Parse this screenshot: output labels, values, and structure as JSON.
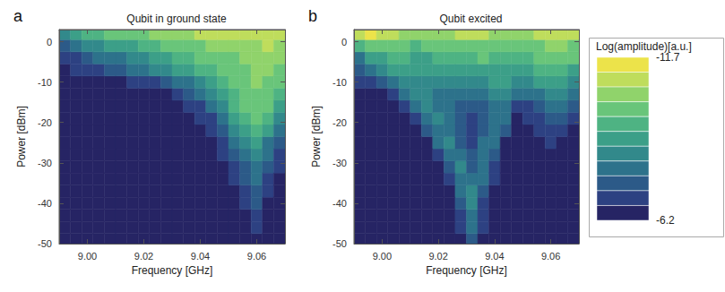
{
  "chart_data": [
    {
      "type": "heatmap",
      "panel_label": "a",
      "title": "Qubit in ground state",
      "x_label": "Frequency [GHz]",
      "y_label": "Power [dBm]",
      "xlim": [
        8.99,
        9.07
      ],
      "xticks": [
        {
          "value": 9,
          "label": "9.00"
        },
        9.02,
        9.04,
        9.06
      ],
      "ylim": [
        -50,
        3
      ],
      "yticks": [
        -50,
        -40,
        -30,
        -20,
        -10,
        0
      ],
      "grid": false,
      "x": [
        8.992,
        8.996,
        9.0,
        9.004,
        9.008,
        9.012,
        9.016,
        9.02,
        9.024,
        9.028,
        9.032,
        9.036,
        9.04,
        9.044,
        9.048,
        9.052,
        9.056,
        9.06,
        9.064,
        9.068
      ],
      "y": [
        -49,
        -46,
        -43,
        -40,
        -37,
        -34,
        -31,
        -28,
        -25,
        -22,
        -19,
        -16,
        -13,
        -10,
        -7,
        -4,
        -1,
        2
      ],
      "z": [
        [
          -6.3,
          -6.3,
          -6.3,
          -6.3,
          -6.3,
          -6.3,
          -6.3,
          -6.3,
          -6.3,
          -6.3,
          -6.3,
          -6.3,
          -6.3,
          -6.3,
          -6.3,
          -6.3,
          -6.3,
          -6.5,
          -6.3,
          -6.3
        ],
        [
          -6.3,
          -6.3,
          -6.3,
          -6.3,
          -6.3,
          -6.3,
          -6.3,
          -6.3,
          -6.3,
          -6.3,
          -6.3,
          -6.3,
          -6.3,
          -6.3,
          -6.3,
          -6.3,
          -6.3,
          -6.8,
          -6.3,
          -6.3
        ],
        [
          -6.3,
          -6.3,
          -6.3,
          -6.3,
          -6.3,
          -6.3,
          -6.3,
          -6.3,
          -6.3,
          -6.3,
          -6.3,
          -6.3,
          -6.3,
          -6.3,
          -6.3,
          -6.3,
          -6.6,
          -7.0,
          -6.3,
          -6.3
        ],
        [
          -6.3,
          -6.3,
          -6.3,
          -6.3,
          -6.3,
          -6.3,
          -6.3,
          -6.3,
          -6.3,
          -6.3,
          -6.3,
          -6.3,
          -6.3,
          -6.3,
          -6.3,
          -6.3,
          -6.8,
          -7.3,
          -6.6,
          -6.3
        ],
        [
          -6.3,
          -6.3,
          -6.3,
          -6.3,
          -6.3,
          -6.3,
          -6.3,
          -6.3,
          -6.3,
          -6.3,
          -6.3,
          -6.3,
          -6.3,
          -6.3,
          -6.3,
          -6.3,
          -7.0,
          -7.4,
          -6.8,
          -6.3
        ],
        [
          -6.3,
          -6.3,
          -6.3,
          -6.3,
          -6.3,
          -6.3,
          -6.3,
          -6.3,
          -6.3,
          -6.3,
          -6.3,
          -6.3,
          -6.3,
          -6.3,
          -6.3,
          -6.8,
          -7.4,
          -7.8,
          -7.0,
          -6.3
        ],
        [
          -6.3,
          -6.3,
          -6.3,
          -6.3,
          -6.3,
          -6.3,
          -6.3,
          -6.3,
          -6.3,
          -6.3,
          -6.3,
          -6.3,
          -6.3,
          -6.3,
          -6.3,
          -7.0,
          -7.6,
          -8.0,
          -7.4,
          -6.8
        ],
        [
          -6.3,
          -6.3,
          -6.3,
          -6.3,
          -6.3,
          -6.3,
          -6.3,
          -6.3,
          -6.3,
          -6.3,
          -6.3,
          -6.3,
          -6.3,
          -6.3,
          -6.8,
          -7.4,
          -8.0,
          -8.4,
          -7.8,
          -7.0
        ],
        [
          -6.3,
          -6.3,
          -6.3,
          -6.3,
          -6.3,
          -6.3,
          -6.3,
          -6.3,
          -6.3,
          -6.3,
          -6.3,
          -6.3,
          -6.3,
          -6.3,
          -7.0,
          -7.8,
          -8.6,
          -8.8,
          -8.2,
          -7.4
        ],
        [
          -6.3,
          -6.3,
          -6.3,
          -6.3,
          -6.3,
          -6.3,
          -6.3,
          -6.3,
          -6.3,
          -6.3,
          -6.3,
          -6.3,
          -6.3,
          -6.8,
          -7.6,
          -8.4,
          -9.2,
          -9.4,
          -8.8,
          -8.0
        ],
        [
          -6.3,
          -6.3,
          -6.3,
          -6.3,
          -6.3,
          -6.3,
          -6.3,
          -6.3,
          -6.3,
          -6.3,
          -6.3,
          -6.3,
          -6.8,
          -7.2,
          -8.2,
          -9.0,
          -9.6,
          -9.8,
          -9.4,
          -8.6
        ],
        [
          -6.3,
          -6.3,
          -6.3,
          -6.3,
          -6.3,
          -6.3,
          -6.3,
          -6.3,
          -6.3,
          -6.3,
          -6.3,
          -6.8,
          -7.2,
          -7.8,
          -8.6,
          -9.4,
          -9.8,
          -10.0,
          -9.8,
          -9.2
        ],
        [
          -6.3,
          -6.3,
          -6.3,
          -6.3,
          -6.3,
          -6.3,
          -6.3,
          -6.3,
          -6.3,
          -6.7,
          -7.0,
          -7.4,
          -7.8,
          -8.4,
          -9.0,
          -9.6,
          -10.0,
          -10.2,
          -10.0,
          -9.6
        ],
        [
          -6.3,
          -6.3,
          -6.3,
          -6.3,
          -6.3,
          -6.3,
          -6.8,
          -7.0,
          -7.2,
          -7.4,
          -7.8,
          -8.2,
          -8.6,
          -9.0,
          -9.4,
          -9.8,
          -10.2,
          -10.4,
          -10.2,
          -9.8
        ],
        [
          -6.6,
          -6.8,
          -7.0,
          -7.2,
          -7.4,
          -7.6,
          -7.8,
          -8.0,
          -8.4,
          -8.6,
          -9.0,
          -9.2,
          -9.4,
          -9.6,
          -9.8,
          -10.0,
          -10.2,
          -10.4,
          -10.4,
          -10.2
        ],
        [
          -7.0,
          -7.2,
          -7.6,
          -7.8,
          -8.0,
          -8.2,
          -8.4,
          -8.6,
          -8.8,
          -9.2,
          -9.4,
          -9.6,
          -9.8,
          -10.0,
          -10.2,
          -10.2,
          -10.4,
          -10.4,
          -10.6,
          -10.4
        ],
        [
          -7.6,
          -8.0,
          -8.4,
          -8.6,
          -8.8,
          -9.0,
          -9.2,
          -9.4,
          -9.6,
          -9.8,
          -10.0,
          -10.2,
          -10.2,
          -10.4,
          -10.4,
          -10.6,
          -10.6,
          -10.6,
          -10.8,
          -10.6
        ],
        [
          -8.6,
          -9.0,
          -9.4,
          -9.6,
          -9.8,
          -10.0,
          -10.2,
          -10.2,
          -10.4,
          -10.6,
          -10.6,
          -10.6,
          -10.8,
          -10.8,
          -10.8,
          -10.8,
          -10.8,
          -11.0,
          -11.0,
          -10.8
        ]
      ]
    },
    {
      "type": "heatmap",
      "panel_label": "b",
      "title": "Qubit excited",
      "x_label": "Frequency [GHz]",
      "y_label": "Power [dBm]",
      "xlim": [
        8.99,
        9.07
      ],
      "xticks": [
        {
          "value": 9,
          "label": "9.00"
        },
        9.02,
        9.04,
        9.06
      ],
      "ylim": [
        -50,
        3
      ],
      "yticks": [
        -50,
        -40,
        -30,
        -20,
        -10,
        0
      ],
      "grid": false,
      "x": [
        8.992,
        8.996,
        9.0,
        9.004,
        9.008,
        9.012,
        9.016,
        9.02,
        9.024,
        9.028,
        9.032,
        9.036,
        9.04,
        9.044,
        9.048,
        9.052,
        9.056,
        9.06,
        9.064,
        9.068
      ],
      "y": [
        -49,
        -46,
        -43,
        -40,
        -37,
        -34,
        -31,
        -28,
        -25,
        -22,
        -19,
        -16,
        -13,
        -10,
        -7,
        -4,
        -1,
        2
      ],
      "z": [
        [
          -6.3,
          -6.3,
          -6.3,
          -6.3,
          -6.3,
          -6.3,
          -6.3,
          -6.3,
          -6.3,
          -6.6,
          -7.6,
          -6.6,
          -6.3,
          -6.3,
          -6.3,
          -6.3,
          -6.3,
          -6.3,
          -6.3,
          -6.3
        ],
        [
          -6.3,
          -6.3,
          -6.3,
          -6.3,
          -6.3,
          -6.3,
          -6.3,
          -6.3,
          -6.3,
          -6.8,
          -8.0,
          -6.8,
          -6.3,
          -6.3,
          -6.3,
          -6.3,
          -6.3,
          -6.3,
          -6.3,
          -6.3
        ],
        [
          -6.3,
          -6.3,
          -6.3,
          -6.3,
          -6.3,
          -6.3,
          -6.3,
          -6.3,
          -6.3,
          -7.0,
          -8.2,
          -7.0,
          -6.3,
          -6.3,
          -6.3,
          -6.3,
          -6.3,
          -6.3,
          -6.3,
          -6.3
        ],
        [
          -6.3,
          -6.3,
          -6.3,
          -6.3,
          -6.3,
          -6.3,
          -6.3,
          -6.3,
          -6.3,
          -7.4,
          -8.4,
          -7.2,
          -6.3,
          -6.3,
          -6.3,
          -6.3,
          -6.3,
          -6.3,
          -6.3,
          -6.3
        ],
        [
          -6.3,
          -6.3,
          -6.3,
          -6.3,
          -6.3,
          -6.3,
          -6.3,
          -6.3,
          -6.3,
          -7.8,
          -8.4,
          -7.6,
          -6.3,
          -6.3,
          -6.3,
          -6.3,
          -6.3,
          -6.3,
          -6.3,
          -6.3
        ],
        [
          -6.3,
          -6.3,
          -6.3,
          -6.3,
          -6.3,
          -6.3,
          -6.3,
          -6.3,
          -7.0,
          -8.2,
          -8.2,
          -8.0,
          -6.8,
          -6.3,
          -6.3,
          -6.3,
          -6.3,
          -6.3,
          -6.3,
          -6.3
        ],
        [
          -6.3,
          -6.3,
          -6.3,
          -6.3,
          -6.3,
          -6.3,
          -6.3,
          -6.3,
          -7.6,
          -8.4,
          -7.6,
          -8.2,
          -7.0,
          -6.3,
          -6.3,
          -6.3,
          -6.3,
          -6.3,
          -6.3,
          -6.3
        ],
        [
          -6.3,
          -6.3,
          -6.3,
          -6.3,
          -6.3,
          -6.3,
          -6.3,
          -7.2,
          -8.2,
          -8.0,
          -7.4,
          -8.2,
          -7.6,
          -6.3,
          -6.3,
          -6.3,
          -6.3,
          -6.6,
          -6.3,
          -6.3
        ],
        [
          -6.3,
          -6.3,
          -6.3,
          -6.3,
          -6.3,
          -6.3,
          -6.3,
          -7.8,
          -8.4,
          -7.6,
          -7.2,
          -7.8,
          -8.0,
          -6.3,
          -6.3,
          -6.3,
          -6.3,
          -6.9,
          -6.6,
          -6.3
        ],
        [
          -6.3,
          -6.3,
          -6.3,
          -6.3,
          -6.3,
          -6.3,
          -7.4,
          -8.2,
          -8.0,
          -7.4,
          -7.2,
          -7.4,
          -8.0,
          -7.4,
          -6.3,
          -6.3,
          -6.8,
          -7.2,
          -6.9,
          -6.3
        ],
        [
          -6.3,
          -6.3,
          -6.3,
          -6.3,
          -6.3,
          -7.2,
          -7.8,
          -8.4,
          -7.8,
          -7.4,
          -7.2,
          -7.4,
          -7.8,
          -7.8,
          -6.3,
          -6.8,
          -7.2,
          -7.6,
          -7.4,
          -6.8
        ],
        [
          -6.3,
          -6.3,
          -6.3,
          -6.3,
          -7.0,
          -7.8,
          -8.4,
          -8.2,
          -7.8,
          -7.6,
          -7.4,
          -7.6,
          -8.0,
          -8.2,
          -7.2,
          -7.2,
          -7.6,
          -8.0,
          -8.0,
          -7.4
        ],
        [
          -6.3,
          -6.3,
          -6.3,
          -7.2,
          -7.8,
          -8.4,
          -8.4,
          -8.2,
          -8.0,
          -7.8,
          -7.8,
          -8.0,
          -8.4,
          -8.6,
          -7.8,
          -7.8,
          -8.2,
          -8.6,
          -8.6,
          -8.0
        ],
        [
          -6.8,
          -7.0,
          -7.6,
          -8.2,
          -8.6,
          -8.6,
          -8.6,
          -8.4,
          -8.4,
          -8.4,
          -8.4,
          -8.6,
          -8.8,
          -8.8,
          -8.4,
          -8.4,
          -8.8,
          -9.2,
          -9.2,
          -8.6
        ],
        [
          -7.4,
          -7.8,
          -8.4,
          -8.8,
          -9.0,
          -9.0,
          -8.8,
          -8.8,
          -8.8,
          -8.8,
          -9.0,
          -9.2,
          -9.2,
          -9.0,
          -8.8,
          -9.0,
          -9.4,
          -9.6,
          -9.6,
          -9.2
        ],
        [
          -8.2,
          -8.8,
          -9.2,
          -9.4,
          -9.4,
          -9.2,
          -9.2,
          -9.4,
          -9.4,
          -9.6,
          -9.6,
          -9.8,
          -9.6,
          -9.4,
          -9.4,
          -9.6,
          -9.8,
          -10.0,
          -10.0,
          -9.8
        ],
        [
          -9.4,
          -9.8,
          -10.0,
          -10.0,
          -9.8,
          -9.6,
          -9.8,
          -10.0,
          -10.0,
          -10.2,
          -10.2,
          -10.2,
          -10.0,
          -9.8,
          -9.8,
          -10.0,
          -10.2,
          -10.4,
          -10.4,
          -10.2
        ],
        [
          -11.2,
          -11.4,
          -11.0,
          -10.8,
          -10.6,
          -10.4,
          -10.4,
          -10.6,
          -10.6,
          -10.8,
          -10.8,
          -10.8,
          -10.6,
          -10.4,
          -10.4,
          -10.6,
          -10.8,
          -11.0,
          -11.0,
          -10.8
        ]
      ]
    }
  ],
  "colorbar": {
    "label": "Log(amplitude)[a.u.]",
    "range": [
      -11.7,
      -6.2
    ],
    "ticks": [
      -11.7,
      -6.2
    ],
    "colors": [
      "#ece34a",
      "#bfdd5c",
      "#90d36b",
      "#69c57a",
      "#4eb383",
      "#3c9f88",
      "#32898b",
      "#2d728b",
      "#2c5a88",
      "#2d4182",
      "#262464"
    ]
  }
}
